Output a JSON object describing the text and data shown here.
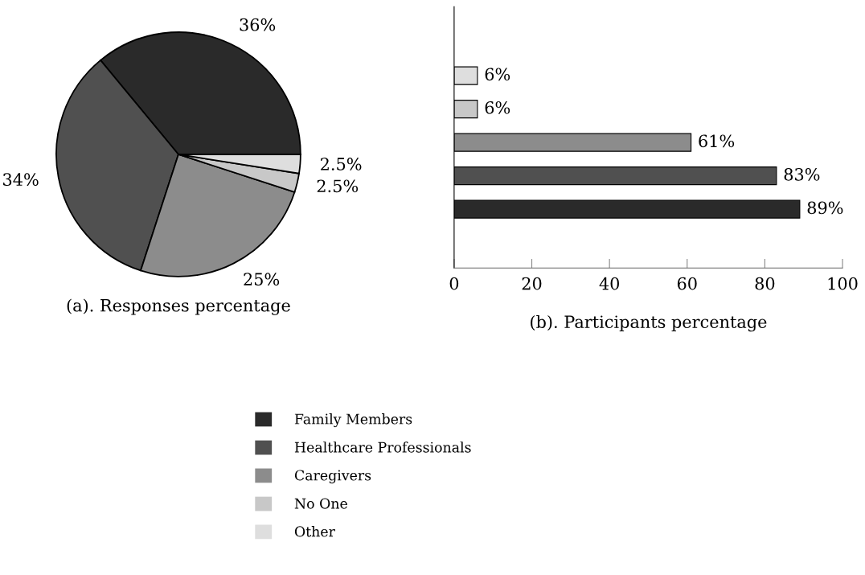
{
  "chart_data": [
    {
      "type": "pie",
      "title": "(a). Responses percentage",
      "categories": [
        "Family Members",
        "Healthcare Professionals",
        "Caregivers",
        "No One",
        "Other"
      ],
      "values": [
        36,
        34,
        25,
        2.5,
        2.5
      ],
      "colors": [
        "#2a2a2a",
        "#505050",
        "#8c8c8c",
        "#c8c8c8",
        "#dedede"
      ],
      "value_labels": [
        "36%",
        "34%",
        "25%",
        "2.5%",
        "2.5%"
      ],
      "legend": "bottom"
    },
    {
      "type": "bar",
      "orientation": "horizontal",
      "title": "(b). Participants percentage",
      "categories": [
        null,
        null,
        null,
        null,
        null
      ],
      "values": [
        6,
        6,
        61,
        83,
        89
      ],
      "colors": [
        "#dedede",
        "#c8c8c8",
        "#8c8c8c",
        "#505050",
        "#2a2a2a"
      ],
      "value_labels": [
        "6%",
        "6%",
        "61%",
        "83%",
        "89%"
      ],
      "xlim": [
        0,
        100
      ],
      "xticks": [
        0,
        20,
        40,
        60,
        80,
        100
      ],
      "tick_labels": "x"
    }
  ]
}
